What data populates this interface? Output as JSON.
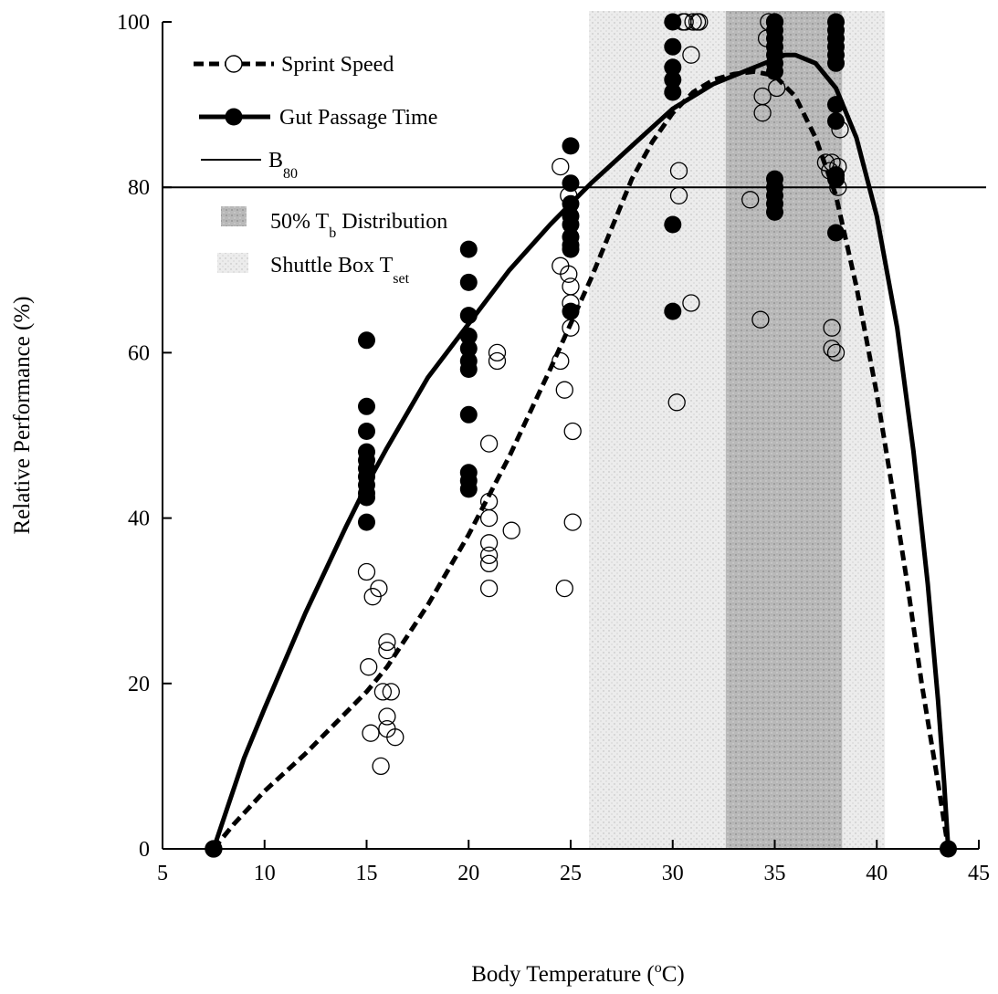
{
  "chart_data": {
    "type": "scatter",
    "xlabel": {
      "text": "Body Temperature (",
      "sup": "o",
      "after": "C)"
    },
    "ylabel": "Relative Performance (%)",
    "xlim": [
      5,
      45
    ],
    "ylim": [
      0,
      100
    ],
    "xticks": [
      5,
      10,
      15,
      20,
      25,
      30,
      35,
      40,
      45
    ],
    "yticks": [
      0,
      20,
      40,
      60,
      80,
      100
    ],
    "grid": false,
    "legend_position": "top-left",
    "legend": {
      "sprint": {
        "text": "Sprint Speed"
      },
      "gut": {
        "text": "Gut Passage Time"
      },
      "b80": {
        "text": "B",
        "sub": "80"
      },
      "tb": {
        "text": "50% T",
        "sub": "b",
        "after": " Distribution"
      },
      "tset": {
        "text": "Shuttle Box T",
        "sub": "set"
      }
    },
    "reference_line": {
      "y": 80
    },
    "shaded_regions": [
      {
        "name": "shuttle-box-tset",
        "x": [
          25.9,
          40.4
        ],
        "color": "#e4e4e4"
      },
      {
        "name": "tb-50-distribution",
        "x": [
          32.6,
          38.3
        ],
        "color": "#b0b0b0"
      }
    ],
    "series": [
      {
        "key": "sprint",
        "marker": "open-circle",
        "curve_style": "dashed",
        "points": [
          [
            7.5,
            0
          ],
          [
            15,
            33.5
          ],
          [
            15.1,
            22
          ],
          [
            15.2,
            14
          ],
          [
            15.3,
            30.5
          ],
          [
            15.6,
            31.5
          ],
          [
            15.7,
            10
          ],
          [
            15.8,
            19
          ],
          [
            16,
            25
          ],
          [
            16,
            24
          ],
          [
            16,
            16
          ],
          [
            16,
            14.5
          ],
          [
            16.2,
            19
          ],
          [
            16.4,
            13.5
          ],
          [
            21,
            49
          ],
          [
            21,
            42
          ],
          [
            21,
            40
          ],
          [
            21,
            37
          ],
          [
            21,
            35.5
          ],
          [
            21,
            34.5
          ],
          [
            21,
            31.5
          ],
          [
            21.4,
            60
          ],
          [
            21.4,
            59
          ],
          [
            22.1,
            38.5
          ],
          [
            24.5,
            59
          ],
          [
            24.5,
            70.5
          ],
          [
            24.5,
            82.5
          ],
          [
            24.7,
            55.5
          ],
          [
            24.7,
            31.5
          ],
          [
            24.9,
            69.5
          ],
          [
            24.9,
            79
          ],
          [
            25,
            68
          ],
          [
            25,
            66
          ],
          [
            25,
            63
          ],
          [
            25.1,
            50.5
          ],
          [
            25.1,
            39.5
          ],
          [
            30.2,
            54
          ],
          [
            30.3,
            79
          ],
          [
            30.3,
            82
          ],
          [
            30.5,
            100
          ],
          [
            30.6,
            100
          ],
          [
            30.9,
            96
          ],
          [
            30.9,
            66
          ],
          [
            31,
            100
          ],
          [
            31.2,
            100
          ],
          [
            31.3,
            100
          ],
          [
            33.8,
            78.5
          ],
          [
            34.3,
            64
          ],
          [
            34.4,
            91
          ],
          [
            34.4,
            89
          ],
          [
            34.6,
            98
          ],
          [
            34.7,
            100
          ],
          [
            35,
            100
          ],
          [
            35.1,
            92
          ],
          [
            37.5,
            83
          ],
          [
            37.7,
            82
          ],
          [
            37.8,
            83
          ],
          [
            37.8,
            63
          ],
          [
            37.8,
            60.5
          ],
          [
            38,
            60
          ],
          [
            38.1,
            82.5
          ],
          [
            38.1,
            80
          ],
          [
            38.2,
            87
          ]
        ],
        "curve": [
          [
            7.5,
            0
          ],
          [
            8.5,
            3
          ],
          [
            10,
            7
          ],
          [
            12,
            11.5
          ],
          [
            14,
            16.5
          ],
          [
            15,
            19
          ],
          [
            16,
            22
          ],
          [
            18,
            29.5
          ],
          [
            20,
            38
          ],
          [
            22,
            47.5
          ],
          [
            24,
            58
          ],
          [
            25,
            63.5
          ],
          [
            26,
            69
          ],
          [
            27,
            75
          ],
          [
            28,
            81
          ],
          [
            29,
            85.5
          ],
          [
            30,
            89
          ],
          [
            31,
            91.5
          ],
          [
            32,
            93
          ],
          [
            33,
            93.7
          ],
          [
            34,
            94
          ],
          [
            35,
            93.5
          ],
          [
            36,
            91
          ],
          [
            37,
            86
          ],
          [
            38,
            79
          ],
          [
            39,
            68
          ],
          [
            40,
            55
          ],
          [
            40.8,
            43
          ],
          [
            41.5,
            32
          ],
          [
            42.2,
            20
          ],
          [
            43,
            8
          ],
          [
            43.5,
            0
          ]
        ]
      },
      {
        "key": "gut",
        "marker": "filled-circle",
        "curve_style": "solid",
        "points": [
          [
            7.5,
            0
          ],
          [
            15,
            61.5
          ],
          [
            15,
            53.5
          ],
          [
            15,
            50.5
          ],
          [
            15,
            48
          ],
          [
            15,
            47
          ],
          [
            15,
            46
          ],
          [
            15,
            45
          ],
          [
            15,
            44
          ],
          [
            15,
            43
          ],
          [
            15,
            42.5
          ],
          [
            15,
            39.5
          ],
          [
            20,
            72.5
          ],
          [
            20,
            68.5
          ],
          [
            20,
            64.5
          ],
          [
            20,
            62
          ],
          [
            20,
            60.5
          ],
          [
            20,
            59
          ],
          [
            20,
            58
          ],
          [
            20,
            52.5
          ],
          [
            20,
            45.5
          ],
          [
            20,
            44.5
          ],
          [
            20,
            43.5
          ],
          [
            25,
            85
          ],
          [
            25,
            80.5
          ],
          [
            25,
            78
          ],
          [
            25,
            76.5
          ],
          [
            25,
            75.5
          ],
          [
            25,
            74
          ],
          [
            25,
            73
          ],
          [
            25,
            72.5
          ],
          [
            25,
            65
          ],
          [
            30,
            100
          ],
          [
            30,
            97
          ],
          [
            30,
            94.5
          ],
          [
            30,
            93
          ],
          [
            30,
            91.5
          ],
          [
            30,
            75.5
          ],
          [
            30,
            65
          ],
          [
            35,
            100
          ],
          [
            35,
            99
          ],
          [
            35,
            98
          ],
          [
            35,
            97
          ],
          [
            35,
            96
          ],
          [
            35,
            95
          ],
          [
            35,
            94
          ],
          [
            35,
            81
          ],
          [
            35,
            80
          ],
          [
            35,
            79
          ],
          [
            35,
            78
          ],
          [
            35,
            77
          ],
          [
            38,
            100
          ],
          [
            38,
            99
          ],
          [
            38,
            98
          ],
          [
            38,
            97
          ],
          [
            38,
            96
          ],
          [
            38,
            95
          ],
          [
            38,
            90
          ],
          [
            38,
            88
          ],
          [
            38,
            81.5
          ],
          [
            38,
            81
          ],
          [
            38,
            74.5
          ],
          [
            43.5,
            0
          ]
        ],
        "curve": [
          [
            7.5,
            0
          ],
          [
            9,
            11
          ],
          [
            10,
            17
          ],
          [
            12,
            28.5
          ],
          [
            14,
            39
          ],
          [
            15,
            44
          ],
          [
            16,
            48.5
          ],
          [
            18,
            57
          ],
          [
            20,
            63.5
          ],
          [
            22,
            70
          ],
          [
            24,
            75.5
          ],
          [
            25,
            78
          ],
          [
            26,
            80.5
          ],
          [
            28,
            85
          ],
          [
            30,
            89.5
          ],
          [
            32,
            92.5
          ],
          [
            34,
            94.5
          ],
          [
            35,
            95.5
          ],
          [
            35.5,
            96
          ],
          [
            36,
            96
          ],
          [
            37,
            95
          ],
          [
            38,
            92
          ],
          [
            39,
            86
          ],
          [
            40,
            76.5
          ],
          [
            41,
            63
          ],
          [
            41.8,
            48
          ],
          [
            42.5,
            32
          ],
          [
            43,
            18
          ],
          [
            43.3,
            8
          ],
          [
            43.5,
            0
          ]
        ]
      }
    ]
  }
}
